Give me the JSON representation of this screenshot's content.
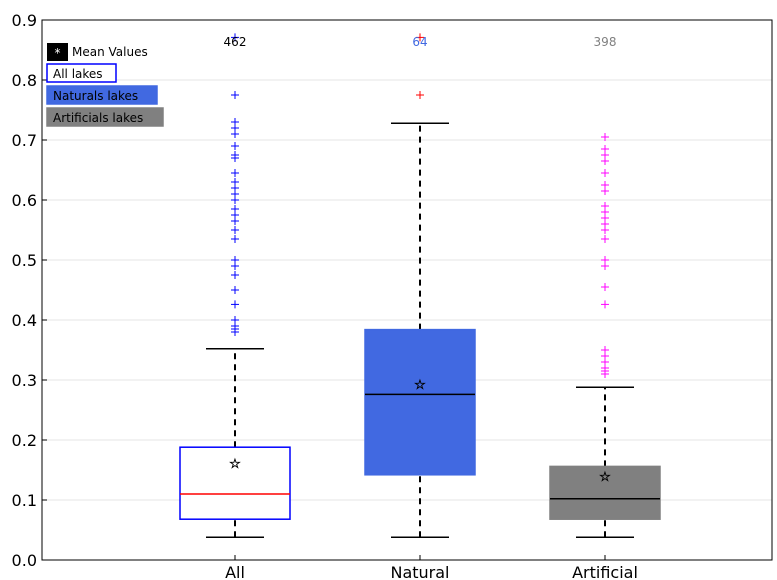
{
  "chart_data": {
    "type": "box",
    "title": "",
    "xlabel": "",
    "ylabel": "",
    "ylim": [
      0.0,
      0.9
    ],
    "yticks": [
      "0.0",
      "0.1",
      "0.2",
      "0.3",
      "0.4",
      "0.5",
      "0.6",
      "0.7",
      "0.8",
      "0.9"
    ],
    "grid": "horizontal",
    "categories": [
      "All",
      "Natural",
      "Artificial"
    ],
    "series": [
      {
        "name": "All lakes",
        "category": "All",
        "count": "462",
        "whisker_low": 0.038,
        "q1": 0.068,
        "median": 0.11,
        "q3": 0.188,
        "whisker_high": 0.352,
        "mean": 0.162,
        "outliers": [
          0.38,
          0.385,
          0.39,
          0.4,
          0.426,
          0.45,
          0.475,
          0.49,
          0.5,
          0.535,
          0.55,
          0.565,
          0.575,
          0.585,
          0.6,
          0.61,
          0.62,
          0.63,
          0.645,
          0.67,
          0.675,
          0.69,
          0.71,
          0.72,
          0.73,
          0.775,
          0.871
        ],
        "style": {
          "fill": "#ffffff",
          "edge": "#0000ff",
          "median_color": "#ff0000",
          "flier_color": "#0000ff"
        }
      },
      {
        "name": "Naturals lakes",
        "category": "Natural",
        "count": "64",
        "whisker_low": 0.038,
        "q1": 0.142,
        "median": 0.276,
        "q3": 0.384,
        "whisker_high": 0.728,
        "mean": 0.293,
        "outliers": [
          0.775,
          0.871
        ],
        "style": {
          "fill": "#4169e1",
          "edge": "#4169e1",
          "median_color": "#000000",
          "flier_color": "#ff0000"
        }
      },
      {
        "name": "Artificials lakes",
        "category": "Artificial",
        "count": "398",
        "whisker_low": 0.038,
        "q1": 0.068,
        "median": 0.102,
        "q3": 0.156,
        "whisker_high": 0.288,
        "mean": 0.14,
        "outliers": [
          0.31,
          0.315,
          0.32,
          0.33,
          0.34,
          0.35,
          0.426,
          0.455,
          0.49,
          0.5,
          0.535,
          0.55,
          0.56,
          0.57,
          0.58,
          0.59,
          0.615,
          0.625,
          0.645,
          0.665,
          0.675,
          0.685,
          0.705
        ],
        "style": {
          "fill": "#808080",
          "edge": "#808080",
          "median_color": "#000000",
          "flier_color": "#ff00ff"
        }
      }
    ],
    "count_colors": [
      "#000000",
      "#4169e1",
      "#808080"
    ],
    "legend": {
      "placement": "top-left",
      "items": [
        {
          "label": "Mean Values",
          "swatch": "#000000",
          "text_color": "#000000",
          "marker": "*"
        },
        {
          "label": "All lakes",
          "swatch": "#ffffff",
          "edge": "#0000ff",
          "text_color": "#000000"
        },
        {
          "label": "Naturals lakes",
          "swatch": "#4169e1",
          "edge": "#4169e1",
          "text_color": "#000000"
        },
        {
          "label": "Artificials lakes",
          "swatch": "#808080",
          "edge": "#808080",
          "text_color": "#000000"
        }
      ]
    }
  }
}
